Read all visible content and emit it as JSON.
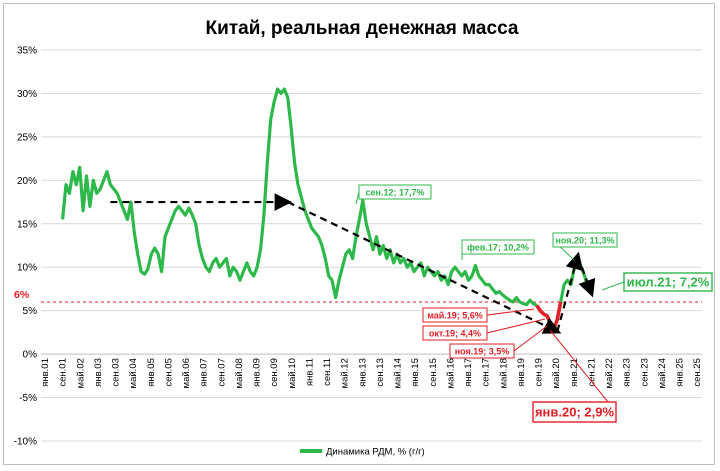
{
  "chart_data": {
    "type": "line",
    "title": "Китай, реальная денежная масса",
    "xlabel": "",
    "ylabel": "",
    "ylim": [
      -10,
      35
    ],
    "y_ticks": [
      "35%",
      "30%",
      "25%",
      "20%",
      "15%",
      "10%",
      "5%",
      "0%",
      "-5%",
      "-10%"
    ],
    "x_ticks": [
      "янв.01",
      "сен.01",
      "май.02",
      "янв.03",
      "сен.03",
      "май.04",
      "янв.05",
      "сен.05",
      "май.06",
      "янв.07",
      "сен.07",
      "май.08",
      "янв.09",
      "сен.09",
      "май.10",
      "янв.11",
      "сен.11",
      "май.12",
      "янв.13",
      "сен.13",
      "май.14",
      "янв.15",
      "сен.15",
      "май.16",
      "янв.17",
      "сен.17",
      "май.18",
      "янв.19",
      "сен.19",
      "май.20",
      "янв.21",
      "сен.21",
      "май.22",
      "янв.23",
      "сен.23",
      "май.24",
      "янв.25",
      "сен.25"
    ],
    "grid": true,
    "legend": {
      "placement": "bottom",
      "label": "Динамика РДМ, % (г/г)"
    },
    "colors": {
      "line": "#2db84a",
      "decline": "#e31e24",
      "threshold": "#e31e24",
      "trend": "#000000",
      "grid": "#d9d9d9"
    },
    "threshold": {
      "value": 6,
      "label": "6%"
    },
    "series": [
      {
        "name": "Динамика РДМ, % (г/г)",
        "points": [
          [
            0,
            15.5
          ],
          [
            1,
            19.5
          ],
          [
            2,
            18.5
          ],
          [
            3,
            21.0
          ],
          [
            4,
            19.5
          ],
          [
            5,
            21.5
          ],
          [
            6,
            16.5
          ],
          [
            7,
            20.5
          ],
          [
            8,
            17.0
          ],
          [
            9,
            20.0
          ],
          [
            10,
            18.5
          ],
          [
            11,
            19.0
          ],
          [
            12,
            20.0
          ],
          [
            13,
            21.0
          ],
          [
            14,
            19.5
          ],
          [
            15,
            19.0
          ],
          [
            16,
            18.5
          ],
          [
            17,
            17.5
          ],
          [
            18,
            16.5
          ],
          [
            19,
            15.5
          ],
          [
            20,
            17.5
          ],
          [
            21,
            14.0
          ],
          [
            22,
            11.5
          ],
          [
            23,
            9.5
          ],
          [
            24,
            9.2
          ],
          [
            25,
            9.8
          ],
          [
            26,
            11.5
          ],
          [
            27,
            12.2
          ],
          [
            28,
            11.5
          ],
          [
            29,
            9.5
          ],
          [
            30,
            13.5
          ],
          [
            31,
            14.5
          ],
          [
            32,
            15.5
          ],
          [
            33,
            16.5
          ],
          [
            34,
            17.0
          ],
          [
            35,
            16.5
          ],
          [
            36,
            16.0
          ],
          [
            37,
            16.8
          ],
          [
            38,
            16.0
          ],
          [
            39,
            15.0
          ],
          [
            40,
            12.5
          ],
          [
            41,
            11.0
          ],
          [
            42,
            10.0
          ],
          [
            43,
            9.5
          ],
          [
            44,
            10.5
          ],
          [
            45,
            11.0
          ],
          [
            46,
            10.0
          ],
          [
            47,
            10.5
          ],
          [
            48,
            11.0
          ],
          [
            49,
            9.0
          ],
          [
            50,
            10.0
          ],
          [
            51,
            9.5
          ],
          [
            52,
            8.5
          ],
          [
            53,
            9.5
          ],
          [
            54,
            10.5
          ],
          [
            55,
            9.5
          ],
          [
            56,
            9.0
          ],
          [
            57,
            10.0
          ],
          [
            58,
            12.0
          ],
          [
            59,
            16.0
          ],
          [
            60,
            22.0
          ],
          [
            61,
            27.0
          ],
          [
            62,
            29.0
          ],
          [
            63,
            30.5
          ],
          [
            64,
            30.0
          ],
          [
            65,
            30.5
          ],
          [
            66,
            29.5
          ],
          [
            67,
            26.0
          ],
          [
            68,
            22.0
          ],
          [
            69,
            19.5
          ],
          [
            70,
            18.0
          ],
          [
            71,
            16.5
          ],
          [
            72,
            15.5
          ],
          [
            73,
            14.5
          ],
          [
            74,
            14.0
          ],
          [
            75,
            13.5
          ],
          [
            76,
            12.5
          ],
          [
            77,
            11.0
          ],
          [
            78,
            9.0
          ],
          [
            79,
            8.5
          ],
          [
            80,
            6.5
          ],
          [
            81,
            8.5
          ],
          [
            82,
            10.0
          ],
          [
            83,
            11.5
          ],
          [
            84,
            12.0
          ],
          [
            85,
            11.0
          ],
          [
            86,
            13.5
          ],
          [
            87,
            15.5
          ],
          [
            88,
            17.7
          ],
          [
            89,
            15.0
          ],
          [
            90,
            13.5
          ],
          [
            91,
            12.0
          ],
          [
            92,
            13.5
          ],
          [
            93,
            11.5
          ],
          [
            94,
            12.5
          ],
          [
            95,
            11.0
          ],
          [
            96,
            12.0
          ],
          [
            97,
            10.5
          ],
          [
            98,
            11.5
          ],
          [
            99,
            10.5
          ],
          [
            100,
            11.0
          ],
          [
            101,
            10.0
          ],
          [
            102,
            10.5
          ],
          [
            103,
            9.5
          ],
          [
            104,
            10.0
          ],
          [
            105,
            10.5
          ],
          [
            106,
            9.0
          ],
          [
            107,
            10.0
          ],
          [
            108,
            9.5
          ],
          [
            109,
            9.0
          ],
          [
            110,
            9.5
          ],
          [
            111,
            8.5
          ],
          [
            112,
            9.0
          ],
          [
            113,
            8.0
          ],
          [
            114,
            9.5
          ],
          [
            115,
            10.0
          ],
          [
            116,
            9.5
          ],
          [
            117,
            9.0
          ],
          [
            118,
            9.5
          ],
          [
            119,
            8.5
          ],
          [
            120,
            9.0
          ],
          [
            121,
            10.2
          ],
          [
            122,
            9.0
          ],
          [
            123,
            8.5
          ],
          [
            124,
            8.0
          ],
          [
            125,
            8.0
          ],
          [
            126,
            7.5
          ],
          [
            127,
            7.0
          ],
          [
            128,
            7.2
          ],
          [
            129,
            6.8
          ],
          [
            130,
            6.5
          ],
          [
            131,
            6.2
          ],
          [
            132,
            6.0
          ],
          [
            133,
            6.5
          ],
          [
            134,
            6.0
          ],
          [
            135,
            5.8
          ],
          [
            136,
            5.7
          ],
          [
            137,
            6.2
          ],
          [
            138,
            5.8
          ],
          [
            139,
            5.6
          ],
          [
            140,
            5.0
          ],
          [
            141,
            4.6
          ],
          [
            142,
            4.4
          ],
          [
            143,
            3.5
          ],
          [
            144,
            2.9
          ],
          [
            145,
            4.0
          ],
          [
            146,
            6.0
          ],
          [
            147,
            8.0
          ],
          [
            148,
            8.5
          ],
          [
            149,
            8.0
          ],
          [
            150,
            10.0
          ],
          [
            151,
            11.3
          ],
          [
            152,
            10.0
          ],
          [
            153,
            9.0
          ],
          [
            154,
            7.5
          ],
          [
            155,
            7.2
          ]
        ]
      }
    ],
    "trend_line": [
      [
        14,
        17.5
      ],
      [
        66,
        17.5
      ],
      [
        145,
        2.6
      ],
      [
        151,
        11.3
      ],
      [
        155,
        7.0
      ]
    ],
    "callouts": [
      {
        "label": "сен.12; 17,7%",
        "month": 140,
        "value": 17.7,
        "style": "green"
      },
      {
        "label": "фев.17; 10,2%",
        "month": 193,
        "value": 10.2,
        "style": "green"
      },
      {
        "label": "ноя.20; 11,3%",
        "month": 238,
        "value": 11.3,
        "style": "green"
      },
      {
        "label": "июл.21; 7,2%",
        "month": 246,
        "value": 7.2,
        "style": "green-large"
      },
      {
        "label": "май.19; 5,6%",
        "month": 220,
        "value": 5.6,
        "style": "red"
      },
      {
        "label": "окт.19; 4,4%",
        "month": 225,
        "value": 4.4,
        "style": "red"
      },
      {
        "label": "ноя.19; 3,5%",
        "month": 226,
        "value": 3.5,
        "style": "red"
      },
      {
        "label": "янв.20; 2,9%",
        "month": 228,
        "value": 2.9,
        "style": "red-large"
      }
    ]
  }
}
